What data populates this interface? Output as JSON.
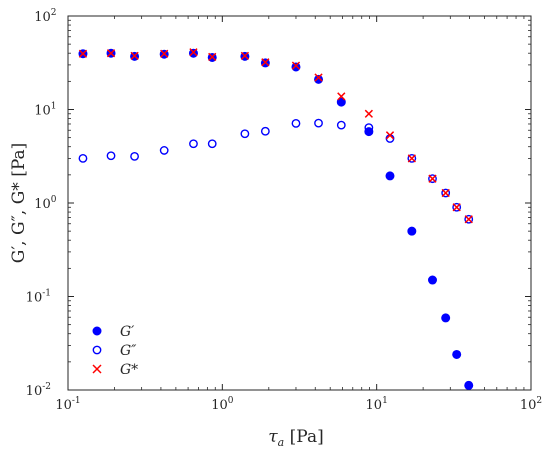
{
  "chart_data": {
    "type": "scatter",
    "xscale": "log",
    "yscale": "log",
    "xlim": [
      0.1,
      100
    ],
    "ylim": [
      0.01,
      100
    ],
    "grid": false,
    "legend_position": "bottom-left",
    "xlabel": {
      "symbol": "τ",
      "subscript": "a",
      "unit": " [Pa]"
    },
    "ylabel": {
      "text": "G′, G″, G* [Pa]"
    },
    "x_ticks": [
      {
        "value": 0.1,
        "base": "10",
        "exp": "-1"
      },
      {
        "value": 1,
        "base": "10",
        "exp": "0"
      },
      {
        "value": 10,
        "base": "10",
        "exp": "1"
      },
      {
        "value": 100,
        "base": "10",
        "exp": "2"
      }
    ],
    "y_ticks": [
      {
        "value": 0.01,
        "base": "10",
        "exp": "-2"
      },
      {
        "value": 0.1,
        "base": "10",
        "exp": "-1"
      },
      {
        "value": 1,
        "base": "10",
        "exp": "0"
      },
      {
        "value": 10,
        "base": "10",
        "exp": "1"
      },
      {
        "value": 100,
        "base": "10",
        "exp": "2"
      }
    ],
    "series": [
      {
        "name": "G′",
        "marker": "filled-circle",
        "color": "#0000ff",
        "points": [
          [
            0.125,
            39.5
          ],
          [
            0.19,
            40.0
          ],
          [
            0.27,
            37.0
          ],
          [
            0.42,
            39.0
          ],
          [
            0.65,
            40.0
          ],
          [
            0.86,
            36.0
          ],
          [
            1.4,
            37.0
          ],
          [
            1.9,
            31.5
          ],
          [
            3.0,
            28.5
          ],
          [
            4.2,
            21.0
          ],
          [
            5.9,
            12.0
          ],
          [
            8.9,
            5.8
          ],
          [
            12.2,
            1.95
          ],
          [
            16.9,
            0.5
          ],
          [
            23.0,
            0.15
          ],
          [
            28.0,
            0.059
          ],
          [
            33.0,
            0.024
          ],
          [
            39.5,
            0.0112
          ]
        ]
      },
      {
        "name": "G″",
        "marker": "open-circle",
        "color": "#0000ff",
        "points": [
          [
            0.125,
            3.0
          ],
          [
            0.19,
            3.2
          ],
          [
            0.27,
            3.15
          ],
          [
            0.42,
            3.65
          ],
          [
            0.65,
            4.3
          ],
          [
            0.86,
            4.3
          ],
          [
            1.4,
            5.5
          ],
          [
            1.9,
            5.85
          ],
          [
            3.0,
            7.1
          ],
          [
            4.2,
            7.15
          ],
          [
            5.9,
            6.8
          ],
          [
            8.9,
            6.4
          ],
          [
            12.2,
            4.9
          ],
          [
            16.9,
            3.0
          ],
          [
            23.0,
            1.82
          ],
          [
            28.0,
            1.28
          ],
          [
            33.0,
            0.9
          ],
          [
            39.5,
            0.67
          ]
        ]
      },
      {
        "name": "G*",
        "marker": "x",
        "color": "#ff0000",
        "points": [
          [
            0.125,
            39.5
          ],
          [
            0.19,
            40.0
          ],
          [
            0.27,
            37.5
          ],
          [
            0.42,
            39.5
          ],
          [
            0.65,
            41.0
          ],
          [
            0.86,
            36.5
          ],
          [
            1.4,
            37.5
          ],
          [
            1.9,
            32.0
          ],
          [
            3.0,
            29.5
          ],
          [
            4.2,
            22.0
          ],
          [
            5.9,
            13.8
          ],
          [
            8.9,
            9.0
          ],
          [
            12.2,
            5.3
          ],
          [
            16.9,
            3.0
          ],
          [
            23.0,
            1.82
          ],
          [
            28.0,
            1.28
          ],
          [
            33.0,
            0.9
          ],
          [
            39.5,
            0.67
          ]
        ]
      }
    ]
  }
}
